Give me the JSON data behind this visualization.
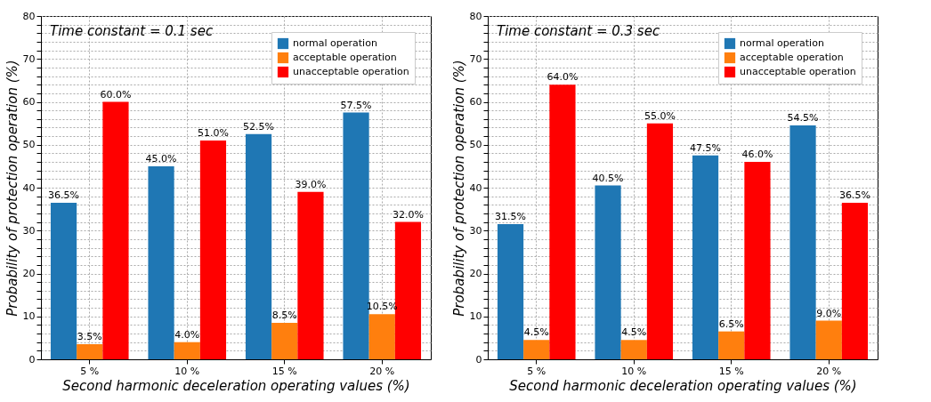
{
  "chart_data": [
    {
      "type": "bar",
      "annotations": [
        "Time constant = 0.1 sec"
      ],
      "xlabel": "Second harmonic deceleration operating values (%)",
      "ylabel": "Probability of protection operation (%)",
      "categories": [
        "5 %",
        "10 %",
        "15 %",
        "20 %"
      ],
      "series": [
        {
          "name": "normal operation",
          "color": "#1f77b4",
          "values": [
            36.5,
            45.0,
            52.5,
            57.5
          ],
          "value_labels": [
            "36.5%",
            "45.0%",
            "52.5%",
            "57.5%"
          ]
        },
        {
          "name": "acceptable operation",
          "color": "#ff7f0e",
          "values": [
            3.5,
            4.0,
            8.5,
            10.5
          ],
          "value_labels": [
            "3.5%",
            "4.0%",
            "8.5%",
            "10.5%"
          ]
        },
        {
          "name": "unacceptable operation",
          "color": "#ff0000",
          "values": [
            60.0,
            51.0,
            39.0,
            32.0
          ],
          "value_labels": [
            "60.0%",
            "51.0%",
            "39.0%",
            "32.0%"
          ]
        }
      ],
      "ylim": [
        0,
        80
      ],
      "yticks": [
        0,
        {
          "value": 2,
          "label": null
        },
        {
          "value": 4,
          "label": null
        },
        {
          "value": 6,
          "label": null
        },
        {
          "value": 8,
          "label": null
        },
        10,
        {
          "value": 12,
          "label": null
        },
        {
          "value": 14,
          "label": null
        },
        {
          "value": 16,
          "label": null
        },
        {
          "value": 18,
          "label": null
        },
        20,
        {
          "value": 22,
          "label": null
        },
        {
          "value": 24,
          "label": null
        },
        {
          "value": 26,
          "label": null
        },
        {
          "value": 28,
          "label": null
        },
        30,
        {
          "value": 32,
          "label": null
        },
        {
          "value": 34,
          "label": null
        },
        {
          "value": 36,
          "label": null
        },
        {
          "value": 38,
          "label": null
        },
        40,
        {
          "value": 42,
          "label": null
        },
        {
          "value": 44,
          "label": null
        },
        {
          "value": 46,
          "label": null
        },
        {
          "value": 48,
          "label": null
        },
        50,
        {
          "value": 52,
          "label": null
        },
        {
          "value": 54,
          "label": null
        },
        {
          "value": 56,
          "label": null
        },
        {
          "value": 58,
          "label": null
        },
        60,
        {
          "value": 62,
          "label": null
        },
        {
          "value": 64,
          "label": null
        },
        {
          "value": 66,
          "label": null
        },
        {
          "value": 68,
          "label": null
        },
        70,
        {
          "value": 72,
          "label": null
        },
        {
          "value": 74,
          "label": null
        },
        {
          "value": 76,
          "label": null
        },
        {
          "value": 78,
          "label": null
        },
        80
      ],
      "grid": true,
      "legend": "top right"
    },
    {
      "type": "bar",
      "annotations": [
        "Time constant = 0.3 sec"
      ],
      "xlabel": "Second harmonic deceleration operating values (%)",
      "ylabel": "Probability of protection operation (%)",
      "categories": [
        "5 %",
        "10 %",
        "15 %",
        "20 %"
      ],
      "series": [
        {
          "name": "normal operation",
          "color": "#1f77b4",
          "values": [
            31.5,
            40.5,
            47.5,
            54.5
          ],
          "value_labels": [
            "31.5%",
            "40.5%",
            "47.5%",
            "54.5%"
          ]
        },
        {
          "name": "acceptable operation",
          "color": "#ff7f0e",
          "values": [
            4.5,
            4.5,
            6.5,
            9.0
          ],
          "value_labels": [
            "4.5%",
            "4.5%",
            "6.5%",
            "9.0%"
          ]
        },
        {
          "name": "unacceptable operation",
          "color": "#ff0000",
          "values": [
            64.0,
            55.0,
            46.0,
            36.5
          ],
          "value_labels": [
            "64.0%",
            "55.0%",
            "46.0%",
            "36.5%"
          ]
        }
      ],
      "ylim": [
        0,
        80
      ],
      "yticks": [
        0,
        {
          "value": 2,
          "label": null
        },
        {
          "value": 4,
          "label": null
        },
        {
          "value": 6,
          "label": null
        },
        {
          "value": 8,
          "label": null
        },
        10,
        {
          "value": 12,
          "label": null
        },
        {
          "value": 14,
          "label": null
        },
        {
          "value": 16,
          "label": null
        },
        {
          "value": 18,
          "label": null
        },
        20,
        {
          "value": 22,
          "label": null
        },
        {
          "value": 24,
          "label": null
        },
        {
          "value": 26,
          "label": null
        },
        {
          "value": 28,
          "label": null
        },
        30,
        {
          "value": 32,
          "label": null
        },
        {
          "value": 34,
          "label": null
        },
        {
          "value": 36,
          "label": null
        },
        {
          "value": 38,
          "label": null
        },
        40,
        {
          "value": 42,
          "label": null
        },
        {
          "value": 44,
          "label": null
        },
        {
          "value": 46,
          "label": null
        },
        {
          "value": 48,
          "label": null
        },
        50,
        {
          "value": 52,
          "label": null
        },
        {
          "value": 54,
          "label": null
        },
        {
          "value": 56,
          "label": null
        },
        {
          "value": 58,
          "label": null
        },
        60,
        {
          "value": 62,
          "label": null
        },
        {
          "value": 64,
          "label": null
        },
        {
          "value": 66,
          "label": null
        },
        {
          "value": 68,
          "label": null
        },
        70,
        {
          "value": 72,
          "label": null
        },
        {
          "value": 74,
          "label": null
        },
        {
          "value": 76,
          "label": null
        },
        {
          "value": 78,
          "label": null
        },
        80
      ],
      "grid": true,
      "legend": "top right"
    }
  ]
}
